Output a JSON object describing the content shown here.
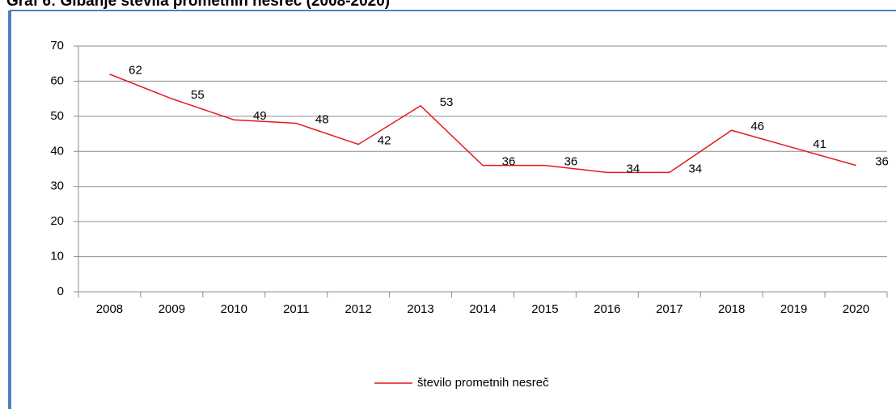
{
  "chart_data": {
    "type": "line",
    "title": "Graf 6: Gibanje števila prometnih nesreč (2008-2020)",
    "categories": [
      "2008",
      "2009",
      "2010",
      "2011",
      "2012",
      "2013",
      "2014",
      "2015",
      "2016",
      "2017",
      "2018",
      "2019",
      "2020"
    ],
    "series": [
      {
        "name": "število prometnih nesreč",
        "color": "#e31a1c",
        "values": [
          62,
          55,
          49,
          48,
          42,
          53,
          36,
          36,
          34,
          34,
          46,
          41,
          36
        ]
      }
    ],
    "ylim": [
      0,
      70
    ],
    "yticks": [
      0,
      10,
      20,
      30,
      40,
      50,
      60,
      70
    ],
    "grid": true,
    "legend": "bottom"
  }
}
